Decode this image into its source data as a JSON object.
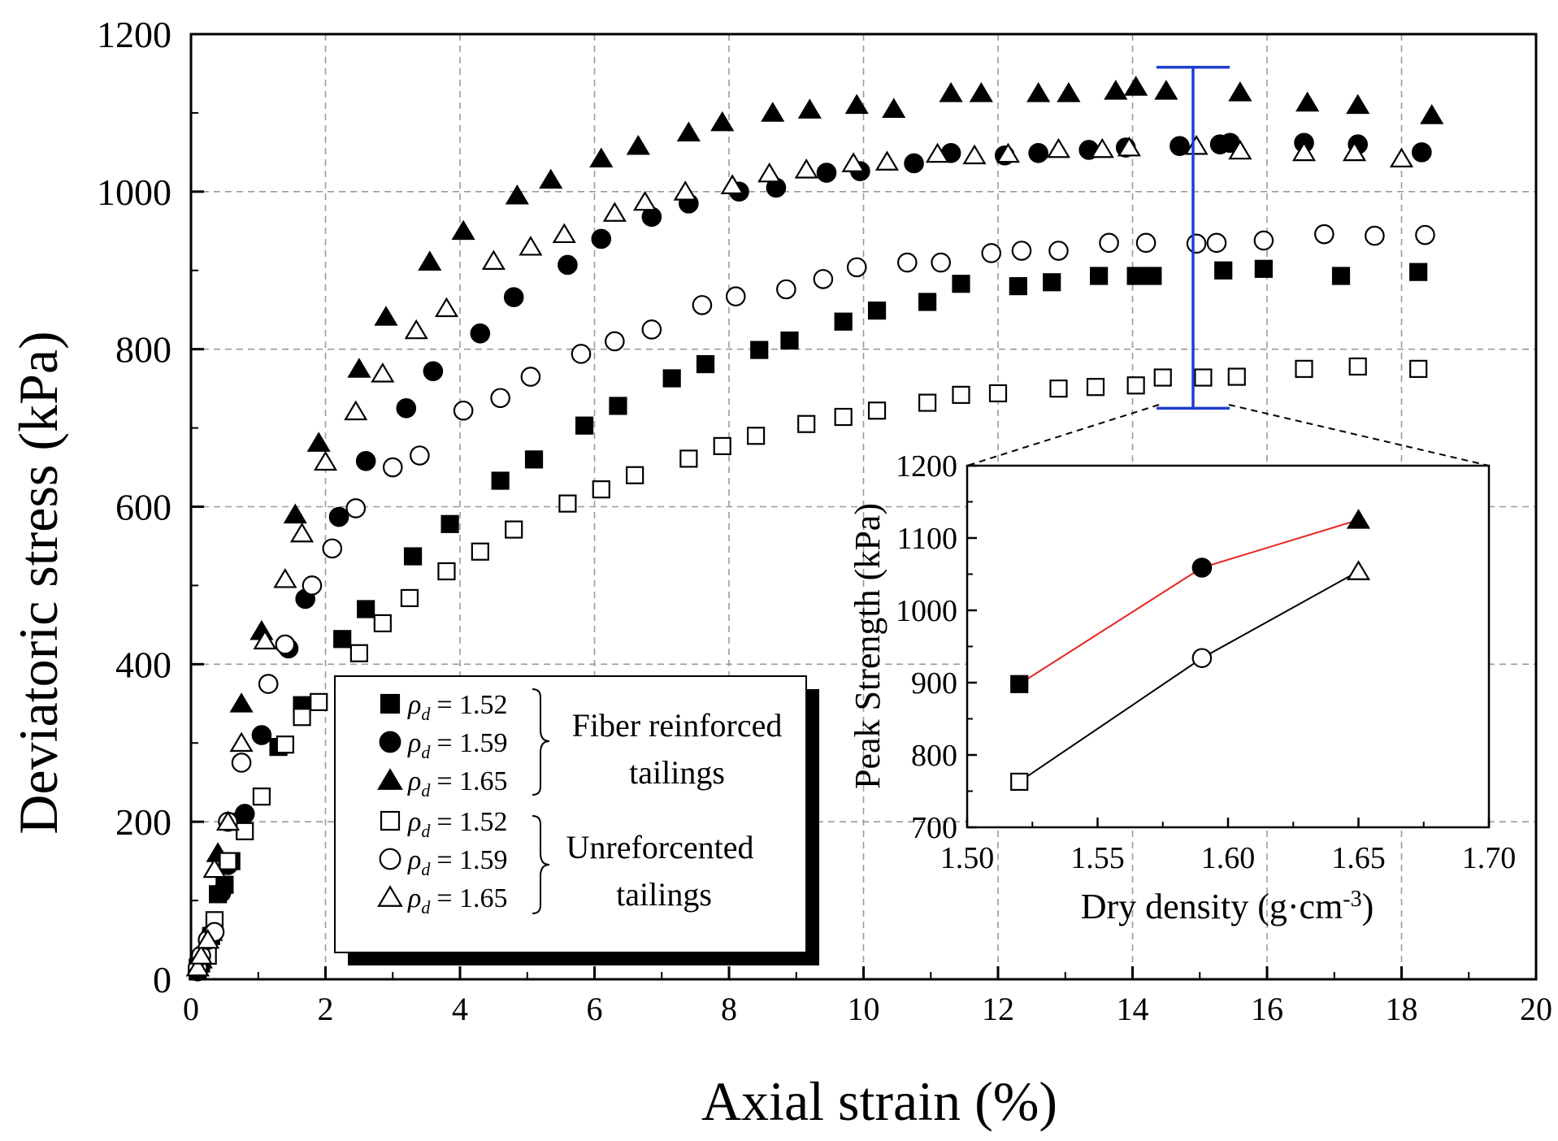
{
  "chart_data": [
    {
      "type": "scatter",
      "xlabel": "Axial strain (%)",
      "ylabel": "Deviatoric stress (kPa)",
      "xlim": [
        0,
        20
      ],
      "ylim": [
        0,
        1200
      ],
      "xticks": [
        "0",
        "2",
        "4",
        "6",
        "8",
        "10",
        "12",
        "14",
        "16",
        "18",
        "20"
      ],
      "yticks": [
        "0",
        "200",
        "400",
        "600",
        "800",
        "1000",
        "1200"
      ],
      "grid": true,
      "error_bar": {
        "x": 14.9,
        "y_low": 725,
        "y_high": 1158,
        "color": "#1f3fd0"
      },
      "series": [
        {
          "name": "ρd = 1.52 Fiber reinforced tailings",
          "marker": "square",
          "filled": true,
          "x": [
            0.1,
            0.15,
            0.3,
            0.4,
            0.5,
            0.6,
            0.75,
            1.3,
            1.65,
            2.25,
            2.6,
            3.3,
            3.85,
            4.6,
            5.1,
            5.85,
            6.35,
            7.15,
            7.65,
            8.45,
            8.9,
            9.7,
            10.2,
            10.95,
            11.45,
            12.3,
            12.8,
            13.5,
            14.05,
            14.3,
            15.35,
            15.95,
            17.1,
            18.25
          ],
          "y": [
            10,
            20,
            55,
            108,
            120,
            150,
            200,
            295,
            348,
            432,
            470,
            537,
            578,
            633,
            660,
            703,
            728,
            763,
            781,
            799,
            811,
            835,
            849,
            860,
            883,
            880,
            885,
            893,
            893,
            893,
            900,
            902,
            893,
            898
          ]
        },
        {
          "name": "ρd = 1.59 Fiber reinforced tailings",
          "marker": "circle",
          "filled": true,
          "x": [
            0.1,
            0.15,
            0.3,
            0.45,
            0.55,
            0.8,
            1.05,
            1.45,
            1.7,
            2.2,
            2.6,
            3.2,
            3.6,
            4.3,
            4.8,
            5.6,
            6.1,
            6.85,
            7.4,
            8.15,
            8.7,
            9.45,
            9.95,
            10.75,
            11.3,
            12.1,
            12.6,
            13.35,
            13.9,
            14.7,
            15.3,
            15.45,
            16.55,
            17.35,
            18.3
          ],
          "y": [
            10,
            20,
            57,
            110,
            145,
            210,
            310,
            420,
            483,
            587,
            658,
            725,
            772,
            820,
            866,
            907,
            940,
            968,
            985,
            1000,
            1005,
            1024,
            1026,
            1036,
            1049,
            1046,
            1049,
            1053,
            1056,
            1058,
            1060,
            1062,
            1062,
            1060,
            1050
          ]
        },
        {
          "name": "ρd = 1.65 Fiber reinforced tailings",
          "marker": "triangle",
          "filled": true,
          "x": [
            0.1,
            0.15,
            0.3,
            0.4,
            0.75,
            1.05,
            1.55,
            1.9,
            2.5,
            2.9,
            3.55,
            4.05,
            4.85,
            5.35,
            6.1,
            6.65,
            7.4,
            7.9,
            8.65,
            9.2,
            9.9,
            10.45,
            11.3,
            11.75,
            12.6,
            13.05,
            13.75,
            14.05,
            14.5,
            15.6,
            16.6,
            17.35,
            18.45
          ],
          "y": [
            15,
            25,
            60,
            160,
            350,
            442,
            590,
            681,
            775,
            841,
            911,
            950,
            995,
            1015,
            1042,
            1058,
            1075,
            1088,
            1100,
            1104,
            1110,
            1105,
            1125,
            1125,
            1125,
            1125,
            1128,
            1133,
            1128,
            1126,
            1113,
            1110,
            1097
          ]
        },
        {
          "name": "ρd = 1.52 Unreforcented tailings",
          "marker": "square",
          "filled": false,
          "x": [
            0.1,
            0.25,
            0.35,
            0.55,
            0.8,
            1.05,
            1.4,
            1.65,
            1.9,
            2.5,
            2.85,
            3.25,
            3.8,
            4.3,
            4.8,
            5.6,
            6.1,
            6.6,
            7.4,
            7.9,
            8.4,
            9.15,
            9.7,
            10.2,
            10.95,
            11.45,
            12,
            12.9,
            13.45,
            14.05,
            14.45,
            15.05,
            15.55,
            16.55,
            17.35,
            18.25
          ],
          "y": [
            15,
            30,
            75,
            150,
            188,
            232,
            298,
            333,
            352,
            414,
            452,
            484,
            518,
            543,
            571,
            604,
            622,
            640,
            661,
            677,
            690,
            705,
            714,
            722,
            732,
            742,
            744,
            750,
            752,
            754,
            764,
            764,
            765,
            775,
            778,
            775
          ]
        },
        {
          "name": "ρd = 1.59 Unreforcented tailings",
          "marker": "circle",
          "filled": false,
          "x": [
            0.1,
            0.15,
            0.25,
            0.35,
            0.55,
            0.75,
            1.15,
            1.4,
            1.8,
            2.1,
            2.45,
            3,
            3.4,
            4.05,
            4.6,
            5.05,
            5.8,
            6.3,
            6.85,
            7.6,
            8.1,
            8.85,
            9.4,
            9.9,
            10.65,
            11.15,
            11.9,
            12.35,
            12.9,
            13.65,
            14.2,
            14.95,
            15.25,
            15.95,
            16.85,
            17.6,
            18.35
          ],
          "y": [
            15,
            30,
            50,
            60,
            200,
            275,
            375,
            425,
            500,
            547,
            598,
            650,
            665,
            722,
            738,
            765,
            794,
            810,
            825,
            856,
            867,
            876,
            889,
            904,
            910,
            910,
            922,
            925,
            925,
            935,
            935,
            934,
            935,
            938,
            946,
            944,
            945
          ]
        },
        {
          "name": "ρd = 1.65 Unreforcented tailings",
          "marker": "triangle",
          "filled": false,
          "x": [
            0.1,
            0.15,
            0.25,
            0.35,
            0.55,
            0.75,
            1.1,
            1.4,
            1.65,
            2,
            2.45,
            2.85,
            3.35,
            3.8,
            4.5,
            5.05,
            5.55,
            6.3,
            6.75,
            7.35,
            8.05,
            8.6,
            9.15,
            9.85,
            10.35,
            11.1,
            11.65,
            12.15,
            12.9,
            13.55,
            13.95,
            14.95,
            15.6,
            16.55,
            17.3,
            18
          ],
          "y": [
            15,
            30,
            50,
            140,
            200,
            300,
            430,
            508,
            566,
            657,
            721,
            769,
            824,
            852,
            912,
            930,
            946,
            973,
            987,
            1000,
            1008,
            1023,
            1028,
            1036,
            1038,
            1048,
            1046,
            1048,
            1054,
            1054,
            1056,
            1058,
            1052,
            1050,
            1050,
            1042
          ]
        }
      ]
    },
    {
      "type": "line",
      "xlabel": "Dry density (g·cm",
      "xlabel_sup": "-3",
      "xlabel_suffix": ")",
      "ylabel": "Peak Strength (kPa)",
      "xlim": [
        1.5,
        1.7
      ],
      "ylim": [
        700,
        1200
      ],
      "xticks": [
        "1.50",
        "1.55",
        "1.60",
        "1.65",
        "1.70"
      ],
      "yticks": [
        "700",
        "800",
        "900",
        "1000",
        "1100",
        "1200"
      ],
      "grid": false,
      "series": [
        {
          "name": "Fiber reinforced tailings",
          "color": "#e8231c",
          "x": [
            1.52,
            1.59,
            1.65
          ],
          "y": [
            898,
            1059,
            1125
          ],
          "markers": [
            "square",
            "circle",
            "triangle"
          ],
          "filled": true
        },
        {
          "name": "Unreforcented tailings",
          "color": "#000000",
          "x": [
            1.52,
            1.59,
            1.65
          ],
          "y": [
            763,
            934,
            1054
          ],
          "markers": [
            "square",
            "circle",
            "triangle"
          ],
          "filled": false
        }
      ]
    }
  ],
  "legend": {
    "rho_symbol": "ρ",
    "rho_sub": "d",
    "entries": [
      {
        "marker": "square",
        "filled": true,
        "value": "= 1.52"
      },
      {
        "marker": "circle",
        "filled": true,
        "value": "= 1.59"
      },
      {
        "marker": "triangle",
        "filled": true,
        "value": "= 1.65"
      },
      {
        "marker": "square",
        "filled": false,
        "value": "= 1.52"
      },
      {
        "marker": "circle",
        "filled": false,
        "value": "= 1.59"
      },
      {
        "marker": "triangle",
        "filled": false,
        "value": "= 1.65"
      }
    ],
    "group1_line1": "Fiber reinforced",
    "group1_line2": "tailings",
    "group2_line1": "Unreforcented",
    "group2_line2": "tailings"
  }
}
